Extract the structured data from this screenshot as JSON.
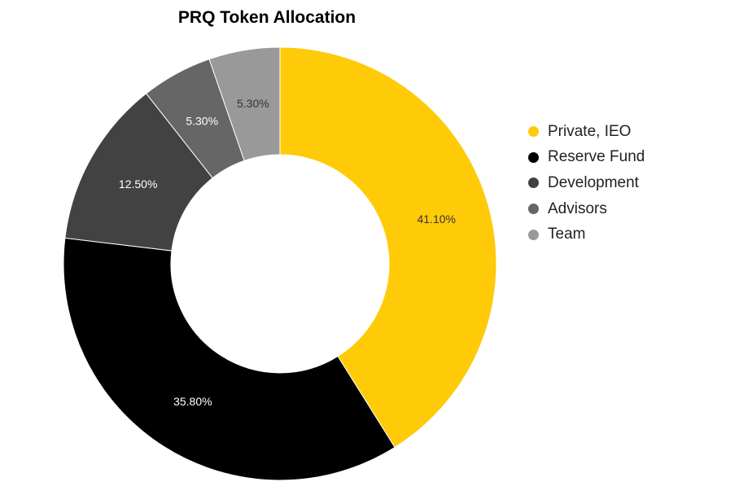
{
  "chart_data": {
    "type": "pie",
    "title": "PRQ Token Allocation",
    "donut": true,
    "start_angle": "top",
    "direction": "clockwise",
    "legend_position": "right",
    "slices": [
      {
        "label": "Private, IEO",
        "value": 41.1,
        "display": "41.10%",
        "color": "#FFCA08",
        "label_color": "#333333"
      },
      {
        "label": "Reserve Fund",
        "value": 35.8,
        "display": "35.80%",
        "color": "#000000",
        "label_color": "#ffffff"
      },
      {
        "label": "Development",
        "value": 12.5,
        "display": "12.50%",
        "color": "#424242",
        "label_color": "#ffffff"
      },
      {
        "label": "Advisors",
        "value": 5.3,
        "display": "5.30%",
        "color": "#666666",
        "label_color": "#ffffff"
      },
      {
        "label": "Team",
        "value": 5.3,
        "display": "5.30%",
        "color": "#999999",
        "label_color": "#333333"
      }
    ]
  }
}
